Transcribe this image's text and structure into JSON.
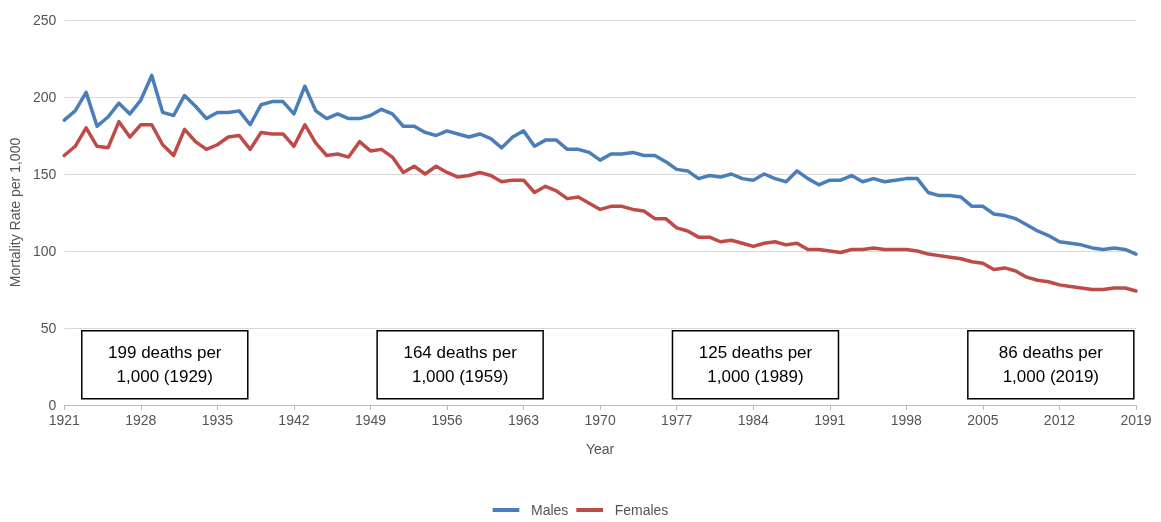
{
  "chart_data": {
    "type": "line",
    "xlabel": "Year",
    "ylabel": "Mortality Rate per 1,000",
    "x": [
      1921,
      1922,
      1923,
      1924,
      1925,
      1926,
      1927,
      1928,
      1929,
      1930,
      1931,
      1932,
      1933,
      1934,
      1935,
      1936,
      1937,
      1938,
      1939,
      1940,
      1941,
      1942,
      1943,
      1944,
      1945,
      1946,
      1947,
      1948,
      1949,
      1950,
      1951,
      1952,
      1953,
      1954,
      1955,
      1956,
      1957,
      1958,
      1959,
      1960,
      1961,
      1962,
      1963,
      1964,
      1965,
      1966,
      1967,
      1968,
      1969,
      1970,
      1971,
      1972,
      1973,
      1974,
      1975,
      1976,
      1977,
      1978,
      1979,
      1980,
      1981,
      1982,
      1983,
      1984,
      1985,
      1986,
      1987,
      1988,
      1989,
      1990,
      1991,
      1992,
      1993,
      1994,
      1995,
      1996,
      1997,
      1998,
      1999,
      2000,
      2001,
      2002,
      2003,
      2004,
      2005,
      2006,
      2007,
      2008,
      2009,
      2010,
      2011,
      2012,
      2013,
      2014,
      2015,
      2016,
      2017,
      2018,
      2019
    ],
    "series": [
      {
        "name": "Males",
        "color": "#4a7ebb",
        "values": [
          185,
          191,
          203,
          181,
          187,
          196,
          189,
          198,
          214,
          190,
          188,
          201,
          194,
          186,
          190,
          190,
          191,
          182,
          195,
          197,
          197,
          189,
          207,
          191,
          186,
          189,
          186,
          186,
          188,
          192,
          189,
          181,
          181,
          177,
          175,
          178,
          176,
          174,
          176,
          173,
          167,
          174,
          178,
          168,
          172,
          172,
          166,
          166,
          164,
          159,
          163,
          163,
          164,
          162,
          162,
          158,
          153,
          152,
          147,
          149,
          148,
          150,
          147,
          146,
          150,
          147,
          145,
          152,
          147,
          143,
          146,
          146,
          149,
          145,
          147,
          145,
          146,
          147,
          147,
          138,
          136,
          136,
          135,
          129,
          129,
          124,
          123,
          121,
          117,
          113,
          110,
          106,
          105,
          104,
          102,
          101,
          102,
          101,
          98
        ]
      },
      {
        "name": "Females",
        "color": "#be4b48",
        "values": [
          162,
          168,
          180,
          168,
          167,
          184,
          174,
          182,
          182,
          169,
          162,
          179,
          171,
          166,
          169,
          174,
          175,
          166,
          177,
          176,
          176,
          168,
          182,
          170,
          162,
          163,
          161,
          171,
          165,
          166,
          161,
          151,
          155,
          150,
          155,
          151,
          148,
          149,
          151,
          149,
          145,
          146,
          146,
          138,
          142,
          139,
          134,
          135,
          131,
          127,
          129,
          129,
          127,
          126,
          121,
          121,
          115,
          113,
          109,
          109,
          106,
          107,
          105,
          103,
          105,
          106,
          104,
          105,
          101,
          101,
          100,
          99,
          101,
          101,
          102,
          101,
          101,
          101,
          100,
          98,
          97,
          96,
          95,
          93,
          92,
          88,
          89,
          87,
          83,
          81,
          80,
          78,
          77,
          76,
          75,
          75,
          76,
          76,
          74
        ]
      }
    ],
    "xlim": [
      1921,
      2019
    ],
    "xticks": [
      1921,
      1928,
      1935,
      1942,
      1949,
      1956,
      1963,
      1970,
      1977,
      1984,
      1991,
      1998,
      2005,
      2012,
      2019
    ],
    "ylim": [
      0,
      250
    ],
    "yticks": [
      0,
      50,
      100,
      150,
      200,
      250
    ],
    "grid": "y",
    "legend": "bottom",
    "marker": "none",
    "line_style": "solid",
    "annotations": [
      "199 deaths per 1,000 (1929)",
      "164 deaths per 1,000 (1959)",
      "125 deaths per 1,000 (1989)",
      "86 deaths per 1,000 (2019)"
    ]
  }
}
